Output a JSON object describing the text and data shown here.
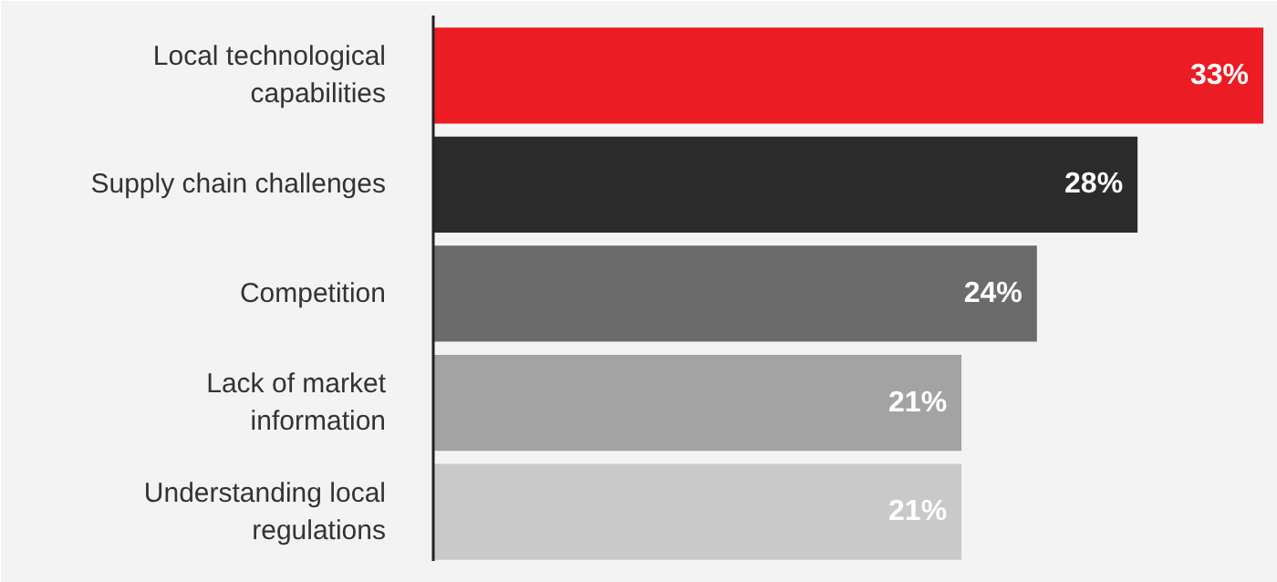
{
  "chart_data": {
    "type": "bar",
    "orientation": "horizontal",
    "categories": [
      "Local technological capabilities",
      "Supply chain challenges",
      "Competition",
      "Lack of market information",
      "Understanding local regulations"
    ],
    "values": [
      33,
      28,
      24,
      21,
      21
    ],
    "colors": [
      "#ec1c24",
      "#2b2b2b",
      "#6b6b6b",
      "#a3a3a3",
      "#c9c9c9"
    ],
    "value_labels": [
      "33%",
      "28%",
      "24%",
      "21%",
      "21%"
    ],
    "xlim": [
      0,
      33
    ],
    "grid": false,
    "tick_labels": "y"
  }
}
